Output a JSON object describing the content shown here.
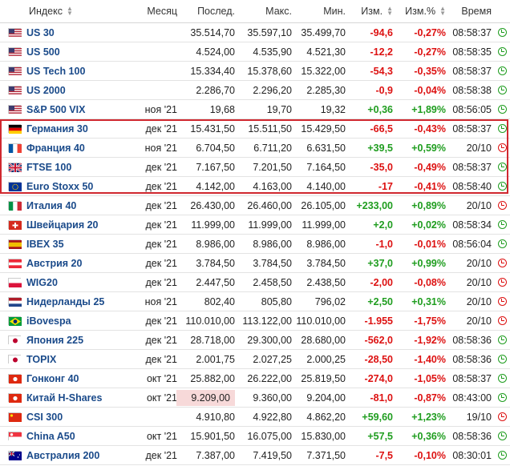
{
  "headers": {
    "name": "Индекс",
    "month": "Месяц",
    "last": "Послед.",
    "high": "Макс.",
    "low": "Мин.",
    "chg": "Изм.",
    "pct": "Изм.%",
    "time": "Время"
  },
  "colors": {
    "positive": "#1f9d1f",
    "negative": "#dd1111",
    "link": "#1a4a8a",
    "highlight_border": "#d0282f"
  },
  "rows": [
    {
      "name": "US 30",
      "flag": "us-flag",
      "month": "",
      "last": "35.514,70",
      "high": "35.597,10",
      "low": "35.499,70",
      "chg": "-94,6",
      "pct": "-0,27%",
      "time": "08:58:37",
      "dir": "neg",
      "open": true
    },
    {
      "name": "US 500",
      "flag": "us-flag",
      "month": "",
      "last": "4.524,00",
      "high": "4.535,90",
      "low": "4.521,30",
      "chg": "-12,2",
      "pct": "-0,27%",
      "time": "08:58:35",
      "dir": "neg",
      "open": true
    },
    {
      "name": "US Tech 100",
      "flag": "us-flag",
      "month": "",
      "last": "15.334,40",
      "high": "15.378,60",
      "low": "15.322,00",
      "chg": "-54,3",
      "pct": "-0,35%",
      "time": "08:58:37",
      "dir": "neg",
      "open": true
    },
    {
      "name": "US 2000",
      "flag": "us-flag",
      "month": "",
      "last": "2.286,70",
      "high": "2.296,20",
      "low": "2.285,30",
      "chg": "-0,9",
      "pct": "-0,04%",
      "time": "08:58:38",
      "dir": "neg",
      "open": true
    },
    {
      "name": "S&P 500 VIX",
      "flag": "us-flag",
      "month": "ноя '21",
      "last": "19,68",
      "high": "19,70",
      "low": "19,32",
      "chg": "+0,36",
      "pct": "+1,89%",
      "time": "08:56:05",
      "dir": "pos",
      "open": true
    },
    {
      "name": "Германия 30",
      "flag": "de-flag",
      "month": "дек '21",
      "last": "15.431,50",
      "high": "15.511,50",
      "low": "15.429,50",
      "chg": "-66,5",
      "pct": "-0,43%",
      "time": "08:58:37",
      "dir": "neg",
      "open": true
    },
    {
      "name": "Франция 40",
      "flag": "fr-flag",
      "month": "ноя '21",
      "last": "6.704,50",
      "high": "6.711,20",
      "low": "6.631,50",
      "chg": "+39,5",
      "pct": "+0,59%",
      "time": "20/10",
      "dir": "pos",
      "open": false
    },
    {
      "name": "FTSE 100",
      "flag": "gb-flag",
      "month": "дек '21",
      "last": "7.167,50",
      "high": "7.201,50",
      "low": "7.164,50",
      "chg": "-35,0",
      "pct": "-0,49%",
      "time": "08:58:37",
      "dir": "neg",
      "open": true
    },
    {
      "name": "Euro Stoxx 50",
      "flag": "eu-flag",
      "month": "дек '21",
      "last": "4.142,00",
      "high": "4.163,00",
      "low": "4.140,00",
      "chg": "-17",
      "pct": "-0,41%",
      "time": "08:58:40",
      "dir": "neg",
      "open": true
    },
    {
      "name": "Италия 40",
      "flag": "it-flag",
      "month": "дек '21",
      "last": "26.430,00",
      "high": "26.460,00",
      "low": "26.105,00",
      "chg": "+233,00",
      "pct": "+0,89%",
      "time": "20/10",
      "dir": "pos",
      "open": false
    },
    {
      "name": "Швейцария 20",
      "flag": "ch-flag",
      "month": "дек '21",
      "last": "11.999,00",
      "high": "11.999,00",
      "low": "11.999,00",
      "chg": "+2,0",
      "pct": "+0,02%",
      "time": "08:58:34",
      "dir": "pos",
      "open": true
    },
    {
      "name": "IBEX 35",
      "flag": "es-flag",
      "month": "дек '21",
      "last": "8.986,00",
      "high": "8.986,00",
      "low": "8.986,00",
      "chg": "-1,0",
      "pct": "-0,01%",
      "time": "08:56:04",
      "dir": "neg",
      "open": true
    },
    {
      "name": "Австрия 20",
      "flag": "at-flag",
      "month": "дек '21",
      "last": "3.784,50",
      "high": "3.784,50",
      "low": "3.784,50",
      "chg": "+37,0",
      "pct": "+0,99%",
      "time": "20/10",
      "dir": "pos",
      "open": false
    },
    {
      "name": "WIG20",
      "flag": "pl-flag",
      "month": "дек '21",
      "last": "2.447,50",
      "high": "2.458,50",
      "low": "2.438,50",
      "chg": "-2,00",
      "pct": "-0,08%",
      "time": "20/10",
      "dir": "neg",
      "open": false
    },
    {
      "name": "Нидерланды 25",
      "flag": "nl-flag",
      "month": "ноя '21",
      "last": "802,40",
      "high": "805,80",
      "low": "796,02",
      "chg": "+2,50",
      "pct": "+0,31%",
      "time": "20/10",
      "dir": "pos",
      "open": false
    },
    {
      "name": "iBovespa",
      "flag": "br-flag",
      "month": "дек '21",
      "last": "110.010,00",
      "high": "113.122,00",
      "low": "110.010,00",
      "chg": "-1.955",
      "pct": "-1,75%",
      "time": "20/10",
      "dir": "neg",
      "open": false
    },
    {
      "name": "Япония 225",
      "flag": "jp-flag",
      "month": "дек '21",
      "last": "28.718,00",
      "high": "29.300,00",
      "low": "28.680,00",
      "chg": "-562,0",
      "pct": "-1,92%",
      "time": "08:58:36",
      "dir": "neg",
      "open": true
    },
    {
      "name": "TOPIX",
      "flag": "jp-flag",
      "month": "дек '21",
      "last": "2.001,75",
      "high": "2.027,25",
      "low": "2.000,25",
      "chg": "-28,50",
      "pct": "-1,40%",
      "time": "08:58:36",
      "dir": "neg",
      "open": true
    },
    {
      "name": "Гонконг 40",
      "flag": "hk-flag",
      "month": "окт '21",
      "last": "25.882,00",
      "high": "26.222,00",
      "low": "25.819,50",
      "chg": "-274,0",
      "pct": "-1,05%",
      "time": "08:58:37",
      "dir": "neg",
      "open": true
    },
    {
      "name": "Китай H-Shares",
      "flag": "hk-flag",
      "month": "окт '21",
      "last": "9.209,00",
      "high": "9.360,00",
      "low": "9.204,00",
      "chg": "-81,0",
      "pct": "-0,87%",
      "time": "08:43:00",
      "dir": "neg",
      "open": true,
      "highlight_last": true
    },
    {
      "name": "CSI 300",
      "flag": "cn-flag",
      "month": "",
      "last": "4.910,80",
      "high": "4.922,80",
      "low": "4.862,20",
      "chg": "+59,60",
      "pct": "+1,23%",
      "time": "19/10",
      "dir": "pos",
      "open": false
    },
    {
      "name": "China A50",
      "flag": "sg-flag",
      "month": "окт '21",
      "last": "15.901,50",
      "high": "16.075,00",
      "low": "15.830,00",
      "chg": "+57,5",
      "pct": "+0,36%",
      "time": "08:58:36",
      "dir": "pos",
      "open": true
    },
    {
      "name": "Австралия 200",
      "flag": "au-flag",
      "month": "дек '21",
      "last": "7.387,00",
      "high": "7.419,50",
      "low": "7.371,50",
      "chg": "-7,5",
      "pct": "-0,10%",
      "time": "08:30:01",
      "dir": "neg",
      "open": true
    }
  ]
}
